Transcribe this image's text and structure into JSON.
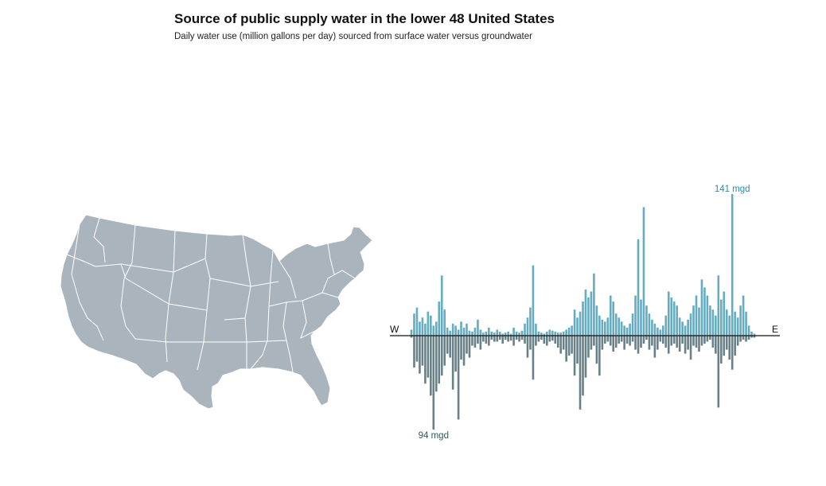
{
  "title": "Source of public supply water in the lower 48 United States",
  "subtitle": "Daily water use (million gallons per day) sourced from surface water versus groundwater",
  "colors": {
    "surface": "#2A8CA9",
    "ground": "#36555F",
    "map_fill": "#AAB4BD",
    "map_border": "#FFFFFF",
    "axis": "#111111"
  },
  "map": {
    "icon": "us-lower-48-map"
  },
  "chart_data": {
    "type": "bar",
    "title": "Source of public supply water in the lower 48 United States",
    "subtitle": "Daily water use (million gallons per day) sourced from surface water versus groundwater",
    "xlabel": "",
    "ylabel": "",
    "axis_left_label": "W",
    "axis_right_label": "E",
    "ylim": [
      -100,
      150
    ],
    "grid": false,
    "legend": "none",
    "annotations": [
      {
        "text": "141 mgd",
        "series": "Surface water",
        "value": 141
      },
      {
        "text": "94 mgd",
        "series": "Groundwater",
        "value": 94
      }
    ],
    "series": [
      {
        "name": "Surface water",
        "values": [
          6,
          22,
          28,
          14,
          18,
          12,
          24,
          20,
          10,
          14,
          34,
          60,
          26,
          8,
          5,
          12,
          10,
          6,
          14,
          8,
          12,
          5,
          4,
          8,
          16,
          6,
          3,
          4,
          8,
          4,
          3,
          6,
          4,
          2,
          3,
          4,
          2,
          8,
          4,
          3,
          5,
          12,
          18,
          28,
          70,
          12,
          4,
          3,
          2,
          4,
          6,
          5,
          4,
          3,
          3,
          4,
          6,
          8,
          10,
          26,
          18,
          24,
          34,
          46,
          38,
          44,
          62,
          30,
          20,
          16,
          14,
          18,
          40,
          34,
          22,
          18,
          14,
          10,
          8,
          12,
          22,
          40,
          96,
          36,
          128,
          30,
          22,
          16,
          12,
          8,
          6,
          10,
          20,
          44,
          38,
          34,
          30,
          18,
          14,
          10,
          16,
          22,
          30,
          40,
          28,
          56,
          48,
          40,
          30,
          26,
          20,
          60,
          36,
          44,
          26,
          20,
          141,
          24,
          18,
          30,
          40,
          24,
          10,
          4,
          2
        ]
      },
      {
        "name": "Groundwater",
        "values": [
          2,
          32,
          26,
          38,
          30,
          48,
          42,
          60,
          94,
          56,
          48,
          40,
          30,
          18,
          22,
          54,
          36,
          84,
          24,
          30,
          18,
          22,
          10,
          12,
          8,
          14,
          6,
          8,
          10,
          4,
          6,
          6,
          4,
          8,
          4,
          6,
          5,
          10,
          4,
          6,
          4,
          8,
          22,
          14,
          44,
          10,
          6,
          4,
          8,
          10,
          6,
          5,
          8,
          12,
          18,
          14,
          26,
          20,
          18,
          40,
          28,
          74,
          60,
          42,
          22,
          14,
          10,
          28,
          40,
          14,
          8,
          6,
          10,
          16,
          12,
          8,
          6,
          14,
          8,
          10,
          6,
          14,
          18,
          12,
          8,
          4,
          14,
          10,
          22,
          14,
          6,
          8,
          12,
          18,
          10,
          8,
          12,
          16,
          8,
          18,
          14,
          24,
          10,
          12,
          16,
          10,
          8,
          6,
          4,
          12,
          18,
          72,
          28,
          20,
          14,
          24,
          34,
          20,
          10,
          6,
          4,
          6,
          4,
          2,
          2
        ]
      }
    ]
  }
}
